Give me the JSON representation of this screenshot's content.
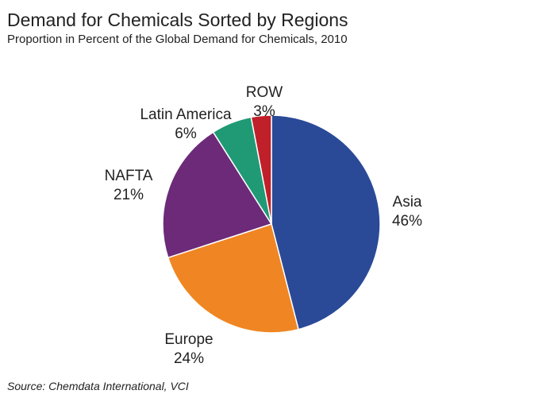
{
  "chart_data": {
    "type": "pie",
    "title": "Demand for Chemicals Sorted by Regions",
    "subtitle": "Proportion in Percent of the Global Demand for Chemicals, 2010",
    "source": "Source: Chemdata International, VCI",
    "categories": [
      "Asia",
      "Europe",
      "NAFTA",
      "Latin America",
      "ROW"
    ],
    "values": [
      46,
      24,
      21,
      6,
      3
    ],
    "labels": [
      "46%",
      "24%",
      "21%",
      "6%",
      "3%"
    ],
    "colors": [
      "#2a4a98",
      "#ef8623",
      "#6d2a79",
      "#1f9a75",
      "#c0202a"
    ],
    "start": "12 o'clock, clockwise"
  }
}
